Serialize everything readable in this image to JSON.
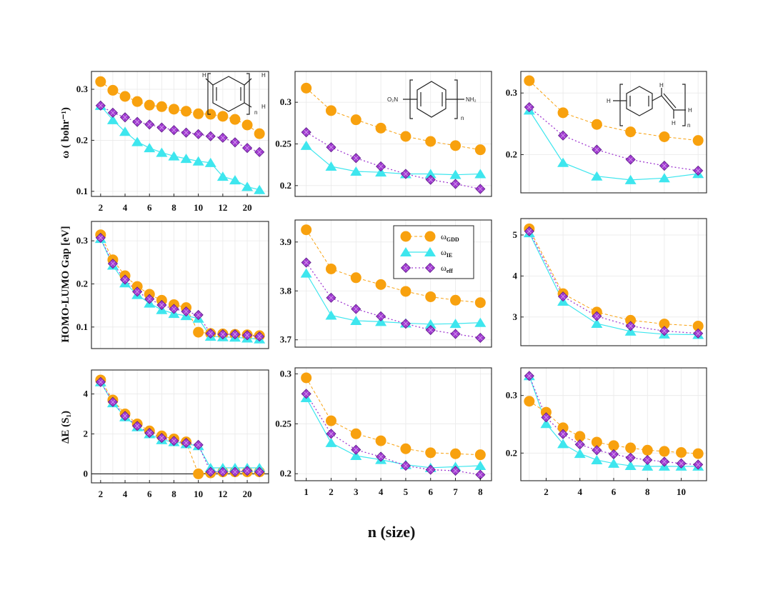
{
  "figure": {
    "xlabel": "n (size)",
    "colors": {
      "gdd": "#f8a10e",
      "ie": "#3ee6ee",
      "eff": "#a13bd1",
      "grid": "#e9e9e9",
      "axis": "#222222"
    }
  },
  "legend": {
    "entries": [
      {
        "symbol": "ω",
        "sub": "GDD",
        "series": "gdd"
      },
      {
        "symbol": "ω",
        "sub": "IE",
        "series": "ie"
      },
      {
        "symbol": "ω",
        "sub": "eff",
        "series": "eff"
      }
    ]
  },
  "molecules": {
    "m1": {
      "labels": [
        "H",
        "H",
        "H",
        "n"
      ]
    },
    "m2": {
      "labels": [
        "O₂N",
        "NH₂",
        "n"
      ]
    },
    "m3": {
      "labels": [
        "H",
        "H",
        "H",
        "H",
        "n"
      ]
    }
  },
  "chart_data": [
    {
      "id": "p1",
      "type": "line",
      "ylabel": "ω ( bohr⁻¹)",
      "x": [
        0,
        1,
        2,
        3,
        4,
        5,
        6,
        7,
        8,
        9,
        10,
        11,
        12,
        13
      ],
      "xlim": [
        -0.75,
        13.75
      ],
      "ylim": [
        0.09,
        0.335
      ],
      "xticks": [
        {
          "pos": 0,
          "label": "2"
        },
        {
          "pos": 2,
          "label": "4"
        },
        {
          "pos": 4,
          "label": "6"
        },
        {
          "pos": 6,
          "label": "8"
        },
        {
          "pos": 8,
          "label": "10"
        },
        {
          "pos": 10,
          "label": "12"
        },
        {
          "pos": 12,
          "label": "20"
        }
      ],
      "yticks": [
        {
          "v": 0.1,
          "label": "0.1"
        },
        {
          "v": 0.2,
          "label": "0.2"
        },
        {
          "v": 0.3,
          "label": "0.3"
        }
      ],
      "series": [
        {
          "name": "ω_GDD",
          "key": "gdd",
          "values": [
            0.315,
            0.298,
            0.286,
            0.276,
            0.269,
            0.266,
            0.261,
            0.257,
            0.252,
            0.251,
            0.247,
            0.241,
            0.23,
            0.213
          ]
        },
        {
          "name": "ω_IE",
          "key": "ie",
          "values": [
            0.268,
            0.24,
            0.217,
            0.197,
            0.185,
            0.176,
            0.169,
            0.164,
            0.159,
            0.156,
            0.129,
            0.122,
            0.109,
            0.103
          ]
        },
        {
          "name": "ω_eff",
          "key": "eff",
          "values": [
            0.268,
            0.254,
            0.245,
            0.236,
            0.231,
            0.225,
            0.22,
            0.215,
            0.212,
            0.208,
            0.205,
            0.196,
            0.185,
            0.177
          ]
        }
      ]
    },
    {
      "id": "p2",
      "type": "line",
      "ylabel": "",
      "x": [
        1,
        2,
        3,
        4,
        5,
        6,
        7,
        8
      ],
      "xlim": [
        0.55,
        8.45
      ],
      "ylim": [
        0.187,
        0.337
      ],
      "xticks": [],
      "yticks": [
        {
          "v": 0.2,
          "label": "0.2"
        },
        {
          "v": 0.25,
          "label": "0.25"
        },
        {
          "v": 0.3,
          "label": "0.3"
        }
      ],
      "series": [
        {
          "name": "ω_GDD",
          "key": "gdd",
          "values": [
            0.317,
            0.29,
            0.279,
            0.269,
            0.259,
            0.253,
            0.248,
            0.243
          ]
        },
        {
          "name": "ω_IE",
          "key": "ie",
          "values": [
            0.248,
            0.223,
            0.217,
            0.216,
            0.214,
            0.214,
            0.213,
            0.214
          ]
        },
        {
          "name": "ω_eff",
          "key": "eff",
          "values": [
            0.264,
            0.246,
            0.233,
            0.223,
            0.214,
            0.207,
            0.202,
            0.196
          ]
        }
      ]
    },
    {
      "id": "p3",
      "type": "line",
      "ylabel": "",
      "x": [
        1,
        3,
        5,
        7,
        9,
        11
      ],
      "xlim": [
        0.5,
        11.5
      ],
      "ylim": [
        0.138,
        0.335
      ],
      "xticks": [],
      "yticks": [
        {
          "v": 0.2,
          "label": "0.2"
        },
        {
          "v": 0.3,
          "label": "0.3"
        }
      ],
      "series": [
        {
          "name": "ω_GDD",
          "key": "gdd",
          "values": [
            0.32,
            0.268,
            0.249,
            0.237,
            0.229,
            0.223
          ]
        },
        {
          "name": "ω_IE",
          "key": "ie",
          "values": [
            0.272,
            0.187,
            0.165,
            0.159,
            0.162,
            0.169
          ]
        },
        {
          "name": "ω_eff",
          "key": "eff",
          "values": [
            0.277,
            0.231,
            0.208,
            0.192,
            0.182,
            0.174
          ]
        }
      ]
    },
    {
      "id": "p4",
      "type": "line",
      "ylabel": "HOMO-LUMO Gap [eV]",
      "x": [
        0,
        1,
        2,
        3,
        4,
        5,
        6,
        7,
        8,
        9,
        10,
        11,
        12,
        13
      ],
      "xlim": [
        -0.75,
        13.75
      ],
      "ylim": [
        0.05,
        0.345
      ],
      "xticks": [],
      "yticks": [
        {
          "v": 0.1,
          "label": "0.1"
        },
        {
          "v": 0.2,
          "label": "0.2"
        },
        {
          "v": 0.3,
          "label": "0.3"
        }
      ],
      "series": [
        {
          "name": "ω_GDD",
          "key": "gdd",
          "values": [
            0.314,
            0.256,
            0.219,
            0.194,
            0.176,
            0.162,
            0.152,
            0.145,
            0.088,
            0.085,
            0.084,
            0.083,
            0.082,
            0.08
          ]
        },
        {
          "name": "ω_IE",
          "key": "ie",
          "values": [
            0.305,
            0.243,
            0.202,
            0.175,
            0.155,
            0.14,
            0.131,
            0.126,
            0.12,
            0.078,
            0.077,
            0.076,
            0.074,
            0.072
          ]
        },
        {
          "name": "ω_eff",
          "key": "eff",
          "values": [
            0.307,
            0.247,
            0.21,
            0.182,
            0.165,
            0.151,
            0.142,
            0.136,
            0.128,
            0.085,
            0.083,
            0.083,
            0.081,
            0.078
          ]
        }
      ]
    },
    {
      "id": "p5",
      "type": "line",
      "ylabel": "",
      "x": [
        1,
        2,
        3,
        4,
        5,
        6,
        7,
        8
      ],
      "xlim": [
        0.55,
        8.45
      ],
      "ylim": [
        3.685,
        3.945
      ],
      "xticks": [],
      "yticks": [
        {
          "v": 3.7,
          "label": "3.7"
        },
        {
          "v": 3.8,
          "label": "3.8"
        },
        {
          "v": 3.9,
          "label": "3.9"
        }
      ],
      "series": [
        {
          "name": "ω_GDD",
          "key": "gdd",
          "values": [
            3.925,
            3.845,
            3.827,
            3.813,
            3.799,
            3.788,
            3.781,
            3.776
          ]
        },
        {
          "name": "ω_IE",
          "key": "ie",
          "values": [
            3.836,
            3.75,
            3.739,
            3.737,
            3.734,
            3.732,
            3.733,
            3.735
          ]
        },
        {
          "name": "ω_eff",
          "key": "eff",
          "values": [
            3.858,
            3.786,
            3.763,
            3.748,
            3.733,
            3.72,
            3.712,
            3.704
          ]
        }
      ]
    },
    {
      "id": "p6",
      "type": "line",
      "ylabel": "",
      "x": [
        1,
        3,
        5,
        7,
        9,
        11
      ],
      "xlim": [
        0.5,
        11.5
      ],
      "ylim": [
        2.3,
        5.4
      ],
      "xticks": [],
      "yticks": [
        {
          "v": 3,
          "label": "3"
        },
        {
          "v": 4,
          "label": "4"
        },
        {
          "v": 5,
          "label": "5"
        }
      ],
      "series": [
        {
          "name": "ω_GDD",
          "key": "gdd",
          "values": [
            5.15,
            3.57,
            3.12,
            2.92,
            2.83,
            2.78
          ]
        },
        {
          "name": "ω_IE",
          "key": "ie",
          "values": [
            5.05,
            3.38,
            2.84,
            2.65,
            2.58,
            2.57
          ]
        },
        {
          "name": "ω_eff",
          "key": "eff",
          "values": [
            5.09,
            3.5,
            3.02,
            2.78,
            2.66,
            2.6
          ]
        }
      ]
    },
    {
      "id": "p7",
      "type": "line",
      "ylabel": "ΔE (S₁)",
      "x": [
        0,
        1,
        2,
        3,
        4,
        5,
        6,
        7,
        8,
        9,
        10,
        11,
        12,
        13
      ],
      "xlim": [
        -0.75,
        13.75
      ],
      "ylim": [
        -0.45,
        5.2
      ],
      "xticks": [
        {
          "pos": 0,
          "label": "2"
        },
        {
          "pos": 2,
          "label": "4"
        },
        {
          "pos": 4,
          "label": "6"
        },
        {
          "pos": 6,
          "label": "8"
        },
        {
          "pos": 8,
          "label": "10"
        },
        {
          "pos": 10,
          "label": "12"
        },
        {
          "pos": 12,
          "label": "20"
        }
      ],
      "yticks": [
        {
          "v": 0,
          "label": "0"
        },
        {
          "v": 2,
          "label": "2"
        },
        {
          "v": 4,
          "label": "4"
        }
      ],
      "zeroline": true,
      "series": [
        {
          "name": "ω_GDD",
          "key": "gdd",
          "values": [
            4.7,
            3.7,
            3.0,
            2.5,
            2.15,
            1.9,
            1.75,
            1.6,
            0.0,
            0.05,
            0.1,
            0.1,
            0.1,
            0.1
          ]
        },
        {
          "name": "ω_IE",
          "key": "ie",
          "values": [
            4.6,
            3.55,
            2.85,
            2.35,
            2.0,
            1.7,
            1.6,
            1.5,
            1.4,
            0.3,
            0.3,
            0.3,
            0.3,
            0.3
          ]
        },
        {
          "name": "ω_eff",
          "key": "eff",
          "values": [
            4.6,
            3.6,
            2.9,
            2.4,
            2.05,
            1.8,
            1.65,
            1.55,
            1.45,
            0.1,
            0.1,
            0.1,
            0.15,
            0.1
          ]
        }
      ]
    },
    {
      "id": "p8",
      "type": "line",
      "ylabel": "",
      "x": [
        1,
        2,
        3,
        4,
        5,
        6,
        7,
        8
      ],
      "xlim": [
        0.55,
        8.45
      ],
      "ylim": [
        0.193,
        0.306
      ],
      "xticks": [
        {
          "pos": 1,
          "label": "1"
        },
        {
          "pos": 2,
          "label": "2"
        },
        {
          "pos": 3,
          "label": "3"
        },
        {
          "pos": 4,
          "label": "4"
        },
        {
          "pos": 5,
          "label": "5"
        },
        {
          "pos": 6,
          "label": "6"
        },
        {
          "pos": 7,
          "label": "7"
        },
        {
          "pos": 8,
          "label": "8"
        }
      ],
      "yticks": [
        {
          "v": 0.2,
          "label": "0.2"
        },
        {
          "v": 0.25,
          "label": "0.25"
        },
        {
          "v": 0.3,
          "label": "0.3"
        }
      ],
      "series": [
        {
          "name": "ω_GDD",
          "key": "gdd",
          "values": [
            0.296,
            0.253,
            0.24,
            0.233,
            0.225,
            0.221,
            0.22,
            0.219
          ]
        },
        {
          "name": "ω_IE",
          "key": "ie",
          "values": [
            0.276,
            0.231,
            0.218,
            0.214,
            0.209,
            0.206,
            0.207,
            0.208
          ]
        },
        {
          "name": "ω_eff",
          "key": "eff",
          "values": [
            0.28,
            0.24,
            0.224,
            0.217,
            0.208,
            0.204,
            0.203,
            0.199
          ]
        }
      ]
    },
    {
      "id": "p9",
      "type": "line",
      "ylabel": "",
      "x": [
        1,
        2,
        3,
        4,
        5,
        6,
        7,
        8,
        9,
        10,
        11
      ],
      "xlim": [
        0.5,
        11.5
      ],
      "ylim": [
        0.152,
        0.348
      ],
      "xticks": [
        {
          "pos": 2,
          "label": "2"
        },
        {
          "pos": 4,
          "label": "4"
        },
        {
          "pos": 6,
          "label": "6"
        },
        {
          "pos": 8,
          "label": "8"
        },
        {
          "pos": 10,
          "label": "10"
        }
      ],
      "yticks": [
        {
          "v": 0.2,
          "label": "0.2"
        },
        {
          "v": 0.3,
          "label": "0.3"
        }
      ],
      "series": [
        {
          "name": "ω_GDD",
          "key": "gdd",
          "values": [
            0.29,
            0.271,
            0.244,
            0.229,
            0.219,
            0.213,
            0.209,
            0.205,
            0.203,
            0.201,
            0.199
          ]
        },
        {
          "name": "ω_IE",
          "key": "ie",
          "values": [
            0.334,
            0.251,
            0.216,
            0.199,
            0.188,
            0.182,
            0.178,
            0.177,
            0.177,
            0.177,
            0.177
          ]
        },
        {
          "name": "ω_eff",
          "key": "eff",
          "values": [
            0.334,
            0.262,
            0.233,
            0.215,
            0.205,
            0.198,
            0.192,
            0.188,
            0.185,
            0.182,
            0.18
          ]
        }
      ]
    }
  ]
}
